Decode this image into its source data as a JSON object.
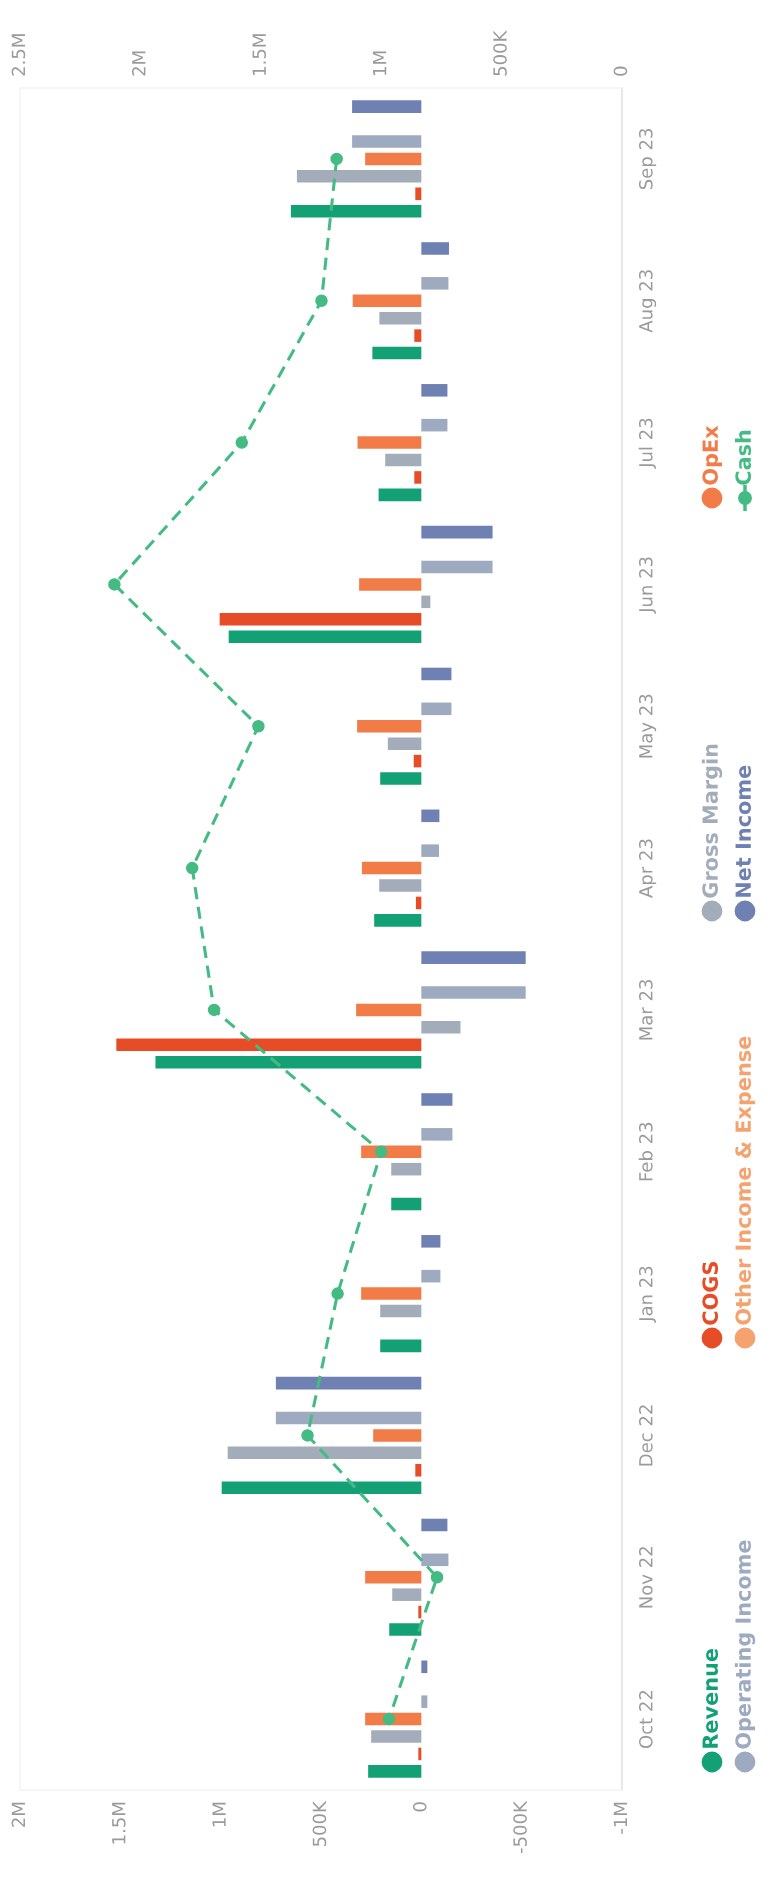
{
  "chart_data": {
    "type": "bar",
    "orientation": "horizontal",
    "categories": [
      "Sep 23",
      "Aug 23",
      "Jul 23",
      "Jun 23",
      "May 23",
      "Apr 23",
      "Mar 23",
      "Feb 23",
      "Jan 23",
      "Dec 22",
      "Nov 22",
      "Oct 22"
    ],
    "series": [
      {
        "name": "Revenue",
        "color": "#14a075",
        "values": [
          650000,
          244000,
          213000,
          960000,
          205000,
          235000,
          1325000,
          150000,
          205000,
          995000,
          160000,
          265000
        ]
      },
      {
        "name": "COGS",
        "color": "#e64d26",
        "values": [
          30000,
          35000,
          35000,
          1005000,
          38000,
          27000,
          1520000,
          0,
          0,
          30000,
          15000,
          15000
        ]
      },
      {
        "name": "Gross Margin",
        "color": "#a3adba",
        "values": [
          620000,
          209000,
          180000,
          -45000,
          167000,
          210000,
          -195000,
          150000,
          205000,
          965000,
          145000,
          250000
        ]
      },
      {
        "name": "OpEx",
        "color": "#f27c48",
        "values": [
          280000,
          342000,
          318000,
          310000,
          320000,
          296000,
          325000,
          300000,
          300000,
          240000,
          280000,
          280000
        ]
      },
      {
        "name": "Operating Income",
        "color": "#9eaac0",
        "values": [
          345000,
          -135000,
          -130000,
          -355000,
          -150000,
          -88000,
          -520000,
          -155000,
          -95000,
          725000,
          -135000,
          -30000
        ]
      },
      {
        "name": "Other Income & Expense",
        "color": "#f5a26e",
        "values": [
          0,
          0,
          0,
          0,
          0,
          0,
          0,
          0,
          0,
          0,
          0,
          0
        ]
      },
      {
        "name": "Net Income",
        "color": "#6f80b3",
        "values": [
          345000,
          -138000,
          -130000,
          -355000,
          -150000,
          -90000,
          -520000,
          -155000,
          -95000,
          725000,
          -130000,
          -30000
        ]
      },
      {
        "name": "Cash",
        "color": "#45bb84",
        "type": "line",
        "axis": "x2",
        "marker": "circle",
        "line_style": "dashed",
        "values": [
          1185000,
          1248000,
          1579000,
          2108000,
          1510000,
          1785000,
          1694000,
          1000000,
          1181000,
          1306000,
          768000,
          968000
        ]
      }
    ],
    "xlim": [
      2000000,
      -1000000
    ],
    "xticks": [
      {
        "value": 2000000,
        "label": "2M"
      },
      {
        "value": 1500000,
        "label": "1.5M"
      },
      {
        "value": 1000000,
        "label": "1M"
      },
      {
        "value": 500000,
        "label": "500K"
      },
      0,
      {
        "value": -500000,
        "label": "-500K"
      },
      {
        "value": -1000000,
        "label": "-1M"
      }
    ],
    "x2lim": [
      2500000,
      0
    ],
    "x2ticks": [
      {
        "value": 2500000,
        "label": "2.5M"
      },
      {
        "value": 2000000,
        "label": "2M"
      },
      {
        "value": 1500000,
        "label": "1.5M"
      },
      {
        "value": 1000000,
        "label": "1M"
      },
      {
        "value": 500000,
        "label": "500K"
      },
      0
    ],
    "grid": false,
    "legend": "right"
  }
}
